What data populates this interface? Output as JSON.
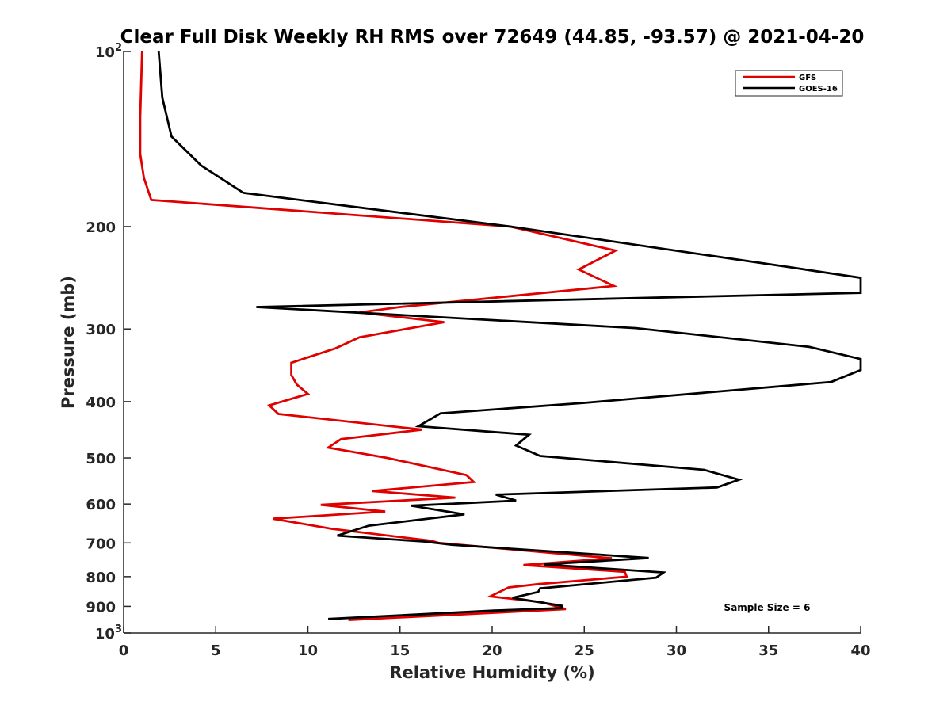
{
  "chart_data": {
    "type": "line",
    "title": "Clear Full Disk Weekly RH RMS over 72649 (44.85, -93.57) @ 2021-04-20",
    "xlabel": "Relative Humidity (%)",
    "ylabel": "Pressure (mb)",
    "xlim": [
      0,
      40
    ],
    "ylim": [
      1000,
      100
    ],
    "yscale": "log",
    "y_reversed": true,
    "grid": false,
    "legend_position": "top-right",
    "x_ticks": [
      0,
      5,
      10,
      15,
      20,
      25,
      30,
      35,
      40
    ],
    "x_tick_labels": [
      "0",
      "5",
      "10",
      "15",
      "20",
      "25",
      "30",
      "35",
      "40"
    ],
    "y_ticks": [
      100,
      200,
      300,
      400,
      500,
      600,
      700,
      800,
      900,
      1000
    ],
    "y_tick_labels": [
      {
        "base": "10",
        "exp": "2"
      },
      {
        "base": "200",
        "exp": ""
      },
      {
        "base": "300",
        "exp": ""
      },
      {
        "base": "400",
        "exp": ""
      },
      {
        "base": "500",
        "exp": ""
      },
      {
        "base": "600",
        "exp": ""
      },
      {
        "base": "700",
        "exp": ""
      },
      {
        "base": "800",
        "exp": ""
      },
      {
        "base": "900",
        "exp": ""
      },
      {
        "base": "10",
        "exp": "3"
      }
    ],
    "annotation": "Sample Size = 6",
    "series": [
      {
        "name": "GFS",
        "color": "#e00000",
        "points": [
          [
            1.0,
            100
          ],
          [
            0.9,
            130
          ],
          [
            0.9,
            150
          ],
          [
            1.1,
            165
          ],
          [
            1.5,
            180
          ],
          [
            21.0,
            200
          ],
          [
            26.7,
            220
          ],
          [
            24.7,
            237
          ],
          [
            26.6,
            253
          ],
          [
            15.0,
            275
          ],
          [
            12.8,
            281
          ],
          [
            17.4,
            292
          ],
          [
            12.8,
            310
          ],
          [
            11.5,
            324
          ],
          [
            9.1,
            343
          ],
          [
            9.1,
            360
          ],
          [
            9.4,
            374
          ],
          [
            10.0,
            388
          ],
          [
            7.9,
            406
          ],
          [
            8.4,
            420
          ],
          [
            16.2,
            447
          ],
          [
            11.8,
            464
          ],
          [
            11.1,
            480
          ],
          [
            14.3,
            500
          ],
          [
            18.6,
            535
          ],
          [
            19.0,
            550
          ],
          [
            13.5,
            570
          ],
          [
            18.0,
            585
          ],
          [
            10.7,
            602
          ],
          [
            14.2,
            618
          ],
          [
            8.1,
            636
          ],
          [
            11.3,
            662
          ],
          [
            16.7,
            694
          ],
          [
            17.1,
            700
          ],
          [
            26.5,
            744
          ],
          [
            21.7,
            764
          ],
          [
            27.2,
            785
          ],
          [
            27.3,
            800
          ],
          [
            22.5,
            824
          ],
          [
            20.9,
            835
          ],
          [
            19.9,
            865
          ],
          [
            22.7,
            885
          ],
          [
            24.0,
            910
          ],
          [
            12.2,
            950
          ]
        ]
      },
      {
        "name": "GOES-16",
        "color": "#000000",
        "points": [
          [
            1.9,
            100
          ],
          [
            2.1,
            120
          ],
          [
            2.6,
            140
          ],
          [
            4.2,
            157
          ],
          [
            6.5,
            175
          ],
          [
            21.0,
            200
          ],
          [
            36.2,
            235
          ],
          [
            40.0,
            245
          ],
          [
            40.0,
            260
          ],
          [
            7.2,
            275
          ],
          [
            27.8,
            299
          ],
          [
            37.2,
            322
          ],
          [
            40.0,
            338
          ],
          [
            40.0,
            353
          ],
          [
            38.4,
            370
          ],
          [
            25.0,
            402
          ],
          [
            17.2,
            419
          ],
          [
            16.0,
            441
          ],
          [
            22.0,
            456
          ],
          [
            21.3,
            476
          ],
          [
            22.6,
            496
          ],
          [
            31.5,
            524
          ],
          [
            33.4,
            545
          ],
          [
            32.2,
            562
          ],
          [
            20.2,
            578
          ],
          [
            21.3,
            592
          ],
          [
            15.6,
            604
          ],
          [
            18.5,
            625
          ],
          [
            13.3,
            654
          ],
          [
            11.6,
            680
          ],
          [
            16.3,
            696
          ],
          [
            17.8,
            705
          ],
          [
            28.5,
            743
          ],
          [
            22.8,
            762
          ],
          [
            29.3,
            787
          ],
          [
            28.9,
            803
          ],
          [
            22.6,
            838
          ],
          [
            22.5,
            850
          ],
          [
            21.1,
            870
          ],
          [
            23.8,
            898
          ],
          [
            23.8,
            906
          ],
          [
            20.1,
            915
          ],
          [
            11.1,
            946
          ]
        ]
      }
    ]
  }
}
